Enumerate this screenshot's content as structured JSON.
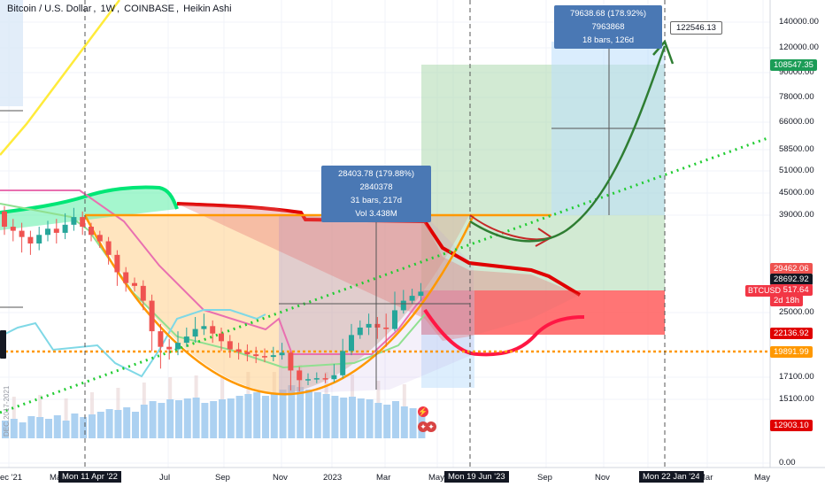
{
  "header": {
    "symbol": "Bitcoin / U.S. Dollar",
    "interval": "1W",
    "exchange": "COINBASE",
    "chart_style": "Heikin Ashi"
  },
  "colors": {
    "up": "#26a69a",
    "down": "#ef5350",
    "cloud_green": "#00e676",
    "cloud_red": "#ff1744",
    "orange": "#ff9800",
    "accent_blue": "#4a78b4",
    "dotted_green": "#22cc33",
    "pink": "#e970b0",
    "cyan": "#7fd8e6",
    "yellow": "#ffeb3b"
  },
  "price_labels": [
    {
      "text": "108547.35",
      "bg": "#1b9c56"
    },
    {
      "text": "29462.06",
      "bg": "#ef5350"
    },
    {
      "text": "28692.92",
      "bg": "#131722"
    },
    {
      "text": "28517.64",
      "bg": "#f23645"
    },
    {
      "text": "2d 18h",
      "bg": "#f23645"
    },
    {
      "text": "22136.92",
      "bg": "#e00000"
    },
    {
      "text": "19891.99",
      "bg": "#ff9800"
    },
    {
      "text": "12903.10",
      "bg": "#e00000"
    }
  ],
  "btc_tag": "BTCUSD",
  "info_boxes": {
    "short": [
      "28403.78 (179.88%) 2840378",
      "31 bars, 217d",
      "Vol 3.438M"
    ],
    "long": [
      "79638.68 (178.92%) 7963868",
      "18 bars, 126d"
    ]
  },
  "callout": "122546.13",
  "chart_data": {
    "type": "candlestick",
    "title": "Bitcoin / U.S. Dollar, 1W, COINBASE, Heikin Ashi",
    "y_axis": {
      "ticks": [
        "140000.00",
        "120000.00",
        "90000.00",
        "78000.00",
        "66000.00",
        "58500.00",
        "51000.00",
        "45000.00",
        "39000.00",
        "25000.00",
        "17100.00",
        "15100.00",
        "0.00"
      ],
      "scale": "log"
    },
    "x_axis": {
      "ticks": [
        "ec '21",
        "Ma",
        "Mon 11 Apr '22",
        "Jul",
        "Sep",
        "Nov",
        "2023",
        "Mar",
        "May",
        "Mon 19 Jun '23",
        "Sep",
        "Nov",
        "Mon 22 Jan '24",
        "Mar",
        "May"
      ],
      "highlighted": [
        "Mon 11 Apr '22",
        "Mon 19 Jun '23",
        "Mon 22 Jan '24"
      ]
    },
    "horizontal_levels": [
      {
        "name": "resistance",
        "value": 45000
      },
      {
        "name": "support",
        "value": 19891.99
      }
    ],
    "candles_description": "Weekly Heikin Ashi candles from Dec 2021 to Apr 2023: decline from ~45000 to ~16000 by Nov 2022, recovery to ~28500 by Apr 2023",
    "candles": [
      {
        "o": 46000,
        "c": 42000,
        "h": 47500,
        "l": 40000
      },
      {
        "o": 42000,
        "c": 41000,
        "h": 44000,
        "l": 38500
      },
      {
        "o": 41000,
        "c": 39500,
        "h": 43000,
        "l": 36000
      },
      {
        "o": 39500,
        "c": 38000,
        "h": 41000,
        "l": 35500
      },
      {
        "o": 38000,
        "c": 40000,
        "h": 42000,
        "l": 36500
      },
      {
        "o": 40000,
        "c": 41500,
        "h": 43500,
        "l": 38500
      },
      {
        "o": 41500,
        "c": 40500,
        "h": 44000,
        "l": 38000
      },
      {
        "o": 40500,
        "c": 42500,
        "h": 45500,
        "l": 39000
      },
      {
        "o": 42500,
        "c": 44500,
        "h": 47000,
        "l": 41000
      },
      {
        "o": 44500,
        "c": 42000,
        "h": 46000,
        "l": 40000
      },
      {
        "o": 42000,
        "c": 40000,
        "h": 43000,
        "l": 38500
      },
      {
        "o": 40000,
        "c": 38500,
        "h": 41000,
        "l": 37000
      },
      {
        "o": 38500,
        "c": 35500,
        "h": 39500,
        "l": 33500
      },
      {
        "o": 35500,
        "c": 32000,
        "h": 36500,
        "l": 29500
      },
      {
        "o": 32000,
        "c": 30000,
        "h": 33000,
        "l": 28500
      },
      {
        "o": 30000,
        "c": 29500,
        "h": 31000,
        "l": 28500
      },
      {
        "o": 29500,
        "c": 27000,
        "h": 30500,
        "l": 25500
      },
      {
        "o": 27000,
        "c": 22500,
        "h": 28000,
        "l": 20000
      },
      {
        "o": 22500,
        "c": 20500,
        "h": 23500,
        "l": 18000
      },
      {
        "o": 20500,
        "c": 20200,
        "h": 21500,
        "l": 19000
      },
      {
        "o": 20200,
        "c": 21000,
        "h": 22500,
        "l": 19500
      },
      {
        "o": 21000,
        "c": 21800,
        "h": 23000,
        "l": 20500
      },
      {
        "o": 21800,
        "c": 22800,
        "h": 24500,
        "l": 21000
      },
      {
        "o": 22800,
        "c": 23200,
        "h": 25000,
        "l": 22000
      },
      {
        "o": 23200,
        "c": 22200,
        "h": 24000,
        "l": 21000
      },
      {
        "o": 22200,
        "c": 21200,
        "h": 23000,
        "l": 20000
      },
      {
        "o": 21200,
        "c": 20200,
        "h": 22000,
        "l": 19200
      },
      {
        "o": 20200,
        "c": 19900,
        "h": 21000,
        "l": 19000
      },
      {
        "o": 19900,
        "c": 19600,
        "h": 20800,
        "l": 18800
      },
      {
        "o": 19600,
        "c": 19400,
        "h": 20500,
        "l": 18600
      },
      {
        "o": 19400,
        "c": 19300,
        "h": 20300,
        "l": 18700
      },
      {
        "o": 19300,
        "c": 19500,
        "h": 20500,
        "l": 18800
      },
      {
        "o": 19500,
        "c": 19800,
        "h": 21000,
        "l": 19000
      },
      {
        "o": 19800,
        "c": 17800,
        "h": 20000,
        "l": 15800
      },
      {
        "o": 17800,
        "c": 16800,
        "h": 18200,
        "l": 15700
      },
      {
        "o": 16800,
        "c": 16900,
        "h": 17500,
        "l": 16300
      },
      {
        "o": 16900,
        "c": 17000,
        "h": 17600,
        "l": 16500
      },
      {
        "o": 17000,
        "c": 16900,
        "h": 17500,
        "l": 16500
      },
      {
        "o": 16900,
        "c": 17300,
        "h": 18500,
        "l": 16600
      },
      {
        "o": 17300,
        "c": 20000,
        "h": 21500,
        "l": 17000
      },
      {
        "o": 20000,
        "c": 22000,
        "h": 23500,
        "l": 19500
      },
      {
        "o": 22000,
        "c": 23000,
        "h": 24000,
        "l": 21500
      },
      {
        "o": 23000,
        "c": 23500,
        "h": 25000,
        "l": 22000
      },
      {
        "o": 23500,
        "c": 23000,
        "h": 24500,
        "l": 21500
      },
      {
        "o": 23000,
        "c": 22800,
        "h": 25000,
        "l": 20500
      },
      {
        "o": 22800,
        "c": 25500,
        "h": 28500,
        "l": 22500
      },
      {
        "o": 25500,
        "c": 27000,
        "h": 28800,
        "l": 25000
      },
      {
        "o": 27000,
        "c": 27800,
        "h": 29000,
        "l": 26500
      },
      {
        "o": 27800,
        "c": 28500,
        "h": 30000,
        "l": 27000
      }
    ],
    "projection": {
      "target": 122546.13,
      "target_date": "Mon 22 Jan '24"
    }
  }
}
